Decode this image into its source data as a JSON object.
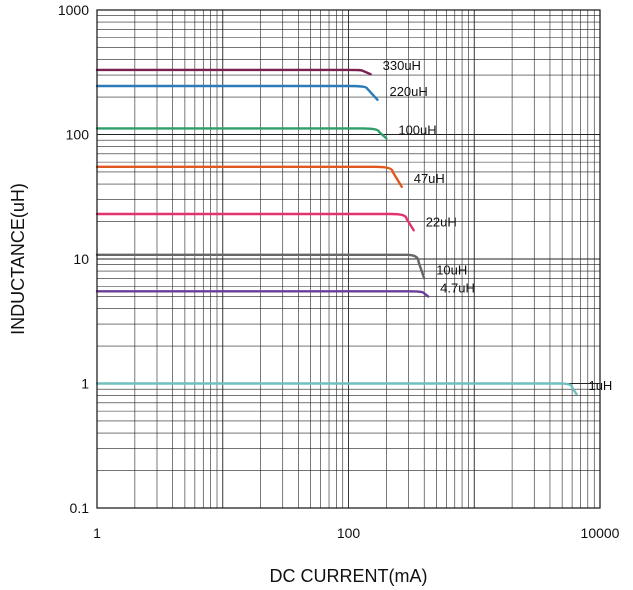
{
  "chart_data": {
    "type": "line",
    "xlabel": "DC CURRENT(mA)",
    "ylabel": "INDUCTANCE(uH)",
    "x_scale": "log",
    "y_scale": "log",
    "xlim": [
      1,
      10000
    ],
    "ylim": [
      0.1,
      1000
    ],
    "x_ticks": [
      "1",
      "100",
      "10000"
    ],
    "y_ticks": [
      "1000",
      "100",
      "10",
      "1",
      "0.1"
    ],
    "grid": true,
    "series": [
      {
        "name": "330uH",
        "color": "#7a1f4f",
        "x": [
          1,
          100,
          130,
          150
        ],
        "y": [
          330,
          330,
          325,
          305
        ]
      },
      {
        "name": "220uH",
        "color": "#2b7bb9",
        "x": [
          1,
          100,
          140,
          170
        ],
        "y": [
          245,
          245,
          235,
          190
        ]
      },
      {
        "name": "100uH",
        "color": "#2e9e6b",
        "x": [
          1,
          130,
          175,
          200
        ],
        "y": [
          112,
          112,
          105,
          93
        ]
      },
      {
        "name": "47uH",
        "color": "#e0571f",
        "x": [
          1,
          165,
          225,
          265
        ],
        "y": [
          55,
          55,
          50,
          38
        ]
      },
      {
        "name": "22uH",
        "color": "#e0336f",
        "x": [
          1,
          220,
          290,
          330
        ],
        "y": [
          23,
          23,
          21,
          17
        ]
      },
      {
        "name": "10uH",
        "color": "#666666",
        "x": [
          1,
          290,
          360,
          400
        ],
        "y": [
          10.8,
          10.8,
          9.5,
          7.0
        ]
      },
      {
        "name": "4.7uH",
        "color": "#6a3d9a",
        "x": [
          1,
          300,
          400,
          430
        ],
        "y": [
          5.5,
          5.5,
          5.3,
          5.0
        ]
      },
      {
        "name": "1uH",
        "color": "#6fbfbf",
        "x": [
          1,
          4800,
          6000,
          6500
        ],
        "y": [
          1.0,
          1.0,
          0.93,
          0.82
        ]
      }
    ]
  }
}
